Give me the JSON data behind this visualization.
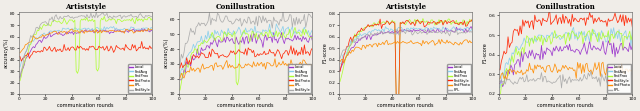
{
  "titles": [
    "Artiststyle",
    "Conillustration",
    "Artiststyle",
    "Conillustration"
  ],
  "xlabels": [
    "communication rounds",
    "communication rounds",
    "communication rounds",
    "communication rounds"
  ],
  "ylabels": [
    "accuracy(%)",
    "accuracy(%)",
    "F1-score",
    "F1-score"
  ],
  "legend_p1": [
    "Local",
    "FedAvg",
    "FedProx",
    "FedProto",
    "FPL",
    "FedStyle"
  ],
  "legend_p2": [
    "Local",
    "FedAvg",
    "FedProx",
    "FedProto",
    "FPL",
    "FedStyle"
  ],
  "legend_p3": [
    "Local",
    "FedAvg",
    "FedProx",
    "FedStyle",
    "FedPhoto",
    "FPL"
  ],
  "legend_p4": [
    "Local",
    "FedAvg",
    "FedProx",
    "FedStyle",
    "FedPhoto",
    "FPL"
  ],
  "colors": [
    "#9932cc",
    "#87ceeb",
    "#adff2f",
    "#ff2200",
    "#ff8c00",
    "#aaaaaa"
  ],
  "bg_color": "#f0ede8"
}
